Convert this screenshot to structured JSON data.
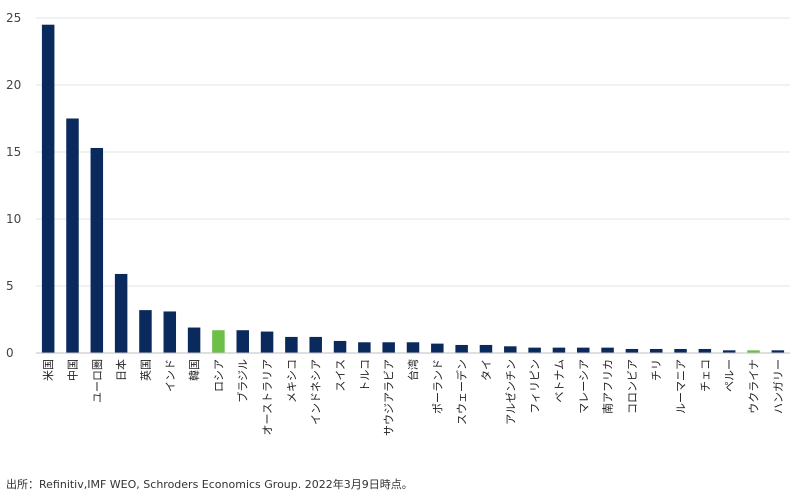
{
  "chart_data": {
    "type": "bar",
    "title": "",
    "xlabel": "",
    "ylabel": "",
    "ylim": [
      0,
      25
    ],
    "yticks": [
      0,
      5,
      10,
      15,
      20,
      25
    ],
    "grid": true,
    "legend": "none",
    "colors": {
      "default": "#0a2a5e",
      "highlight": "#6cc04a",
      "grid": "#e3e3e3",
      "axis": "#bfbfbf"
    },
    "categories": [
      "米国",
      "中国",
      "ユーロ圏",
      "日本",
      "英国",
      "インド",
      "韓国",
      "ロシア",
      "ブラジル",
      "オーストラリア",
      "メキシコ",
      "インドネシア",
      "スイス",
      "トルコ",
      "サウジアラビア",
      "台湾",
      "ポーランド",
      "スウェーデン",
      "タイ",
      "アルゼンチン",
      "フィリピン",
      "ベトナム",
      "マレーシア",
      "南アフリカ",
      "コロンビア",
      "チリ",
      "ルーマニア",
      "チェコ",
      "ペルー",
      "ウクライナ",
      "ハンガリー"
    ],
    "values": [
      24.5,
      17.5,
      15.3,
      5.9,
      3.2,
      3.1,
      1.9,
      1.7,
      1.7,
      1.6,
      1.2,
      1.2,
      0.9,
      0.8,
      0.8,
      0.8,
      0.7,
      0.6,
      0.6,
      0.5,
      0.4,
      0.4,
      0.4,
      0.4,
      0.3,
      0.3,
      0.3,
      0.3,
      0.2,
      0.2,
      0.2
    ],
    "highlight": [
      "ロシア",
      "ウクライナ"
    ]
  },
  "source_note": "出所：Refinitiv,IMF WEO, Schroders Economics Group. 2022年3月9日時点。"
}
